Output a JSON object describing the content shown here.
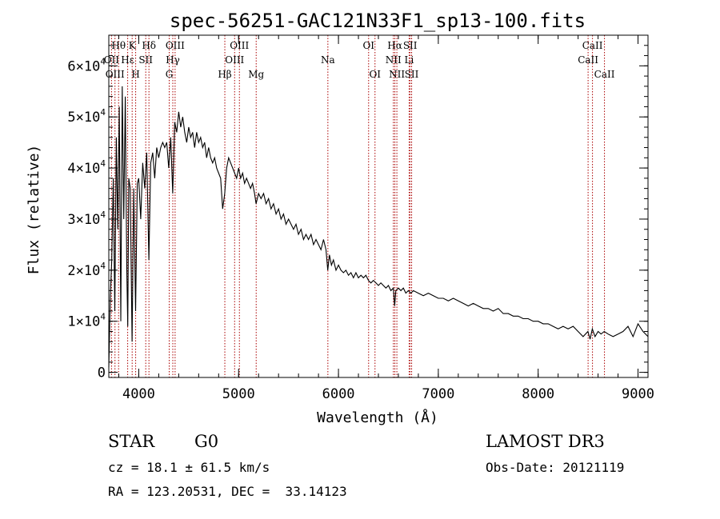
{
  "chart_data": {
    "type": "line",
    "title": "spec-56251-GAC121N33F1_sp13-100.fits",
    "xlabel": "Wavelength (Å)",
    "ylabel": "Flux (relative)",
    "xlim": [
      3700,
      9100
    ],
    "ylim": [
      -1000,
      66000
    ],
    "x_ticks": [
      4000,
      5000,
      6000,
      7000,
      8000,
      9000
    ],
    "x_tick_labels": [
      "4000",
      "5000",
      "6000",
      "7000",
      "8000",
      "9000"
    ],
    "y_ticks": [
      0,
      10000,
      20000,
      30000,
      40000,
      50000,
      60000
    ],
    "y_tick_labels": [
      {
        "mantissa": "0",
        "exp": ""
      },
      {
        "mantissa": "1×10",
        "exp": "4"
      },
      {
        "mantissa": "2×10",
        "exp": "4"
      },
      {
        "mantissa": "3×10",
        "exp": "4"
      },
      {
        "mantissa": "4×10",
        "exp": "4"
      },
      {
        "mantissa": "5×10",
        "exp": "4"
      },
      {
        "mantissa": "6×10",
        "exp": "4"
      }
    ],
    "grid": false,
    "line_color": "#000000",
    "marker_color": "#aa0000",
    "series": [
      {
        "x": [
          3700,
          3715,
          3730,
          3745,
          3760,
          3775,
          3790,
          3805,
          3820,
          3835,
          3850,
          3865,
          3880,
          3890,
          3900,
          3915,
          3933,
          3950,
          3968,
          3985,
          4000,
          4020,
          4040,
          4060,
          4080,
          4101,
          4120,
          4140,
          4160,
          4180,
          4200,
          4220,
          4240,
          4260,
          4280,
          4300,
          4320,
          4340,
          4360,
          4380,
          4400,
          4420,
          4440,
          4460,
          4480,
          4500,
          4520,
          4540,
          4560,
          4580,
          4600,
          4620,
          4640,
          4660,
          4680,
          4700,
          4720,
          4740,
          4760,
          4780,
          4800,
          4820,
          4840,
          4861,
          4880,
          4900,
          4920,
          4940,
          4960,
          4980,
          5000,
          5020,
          5040,
          5060,
          5080,
          5100,
          5120,
          5140,
          5160,
          5175,
          5200,
          5225,
          5250,
          5275,
          5300,
          5325,
          5350,
          5375,
          5400,
          5425,
          5450,
          5475,
          5500,
          5525,
          5550,
          5575,
          5600,
          5625,
          5650,
          5675,
          5700,
          5725,
          5750,
          5775,
          5800,
          5825,
          5850,
          5875,
          5893,
          5910,
          5930,
          5950,
          5975,
          6000,
          6025,
          6050,
          6075,
          6100,
          6125,
          6150,
          6175,
          6200,
          6225,
          6250,
          6275,
          6300,
          6325,
          6350,
          6375,
          6400,
          6425,
          6450,
          6475,
          6500,
          6525,
          6550,
          6563,
          6575,
          6600,
          6625,
          6650,
          6675,
          6700,
          6725,
          6750,
          6800,
          6850,
          6900,
          6950,
          7000,
          7050,
          7100,
          7150,
          7200,
          7250,
          7300,
          7350,
          7400,
          7450,
          7500,
          7550,
          7600,
          7650,
          7700,
          7750,
          7800,
          7850,
          7900,
          7950,
          8000,
          8050,
          8100,
          8150,
          8200,
          8250,
          8300,
          8350,
          8400,
          8450,
          8498,
          8520,
          8542,
          8570,
          8600,
          8630,
          8662,
          8700,
          8750,
          8800,
          8850,
          8900,
          8950,
          9000,
          9050,
          9100
        ],
        "y": [
          1000,
          15000,
          22000,
          38000,
          12000,
          46000,
          28000,
          52000,
          10000,
          56000,
          30000,
          54000,
          20000,
          9000,
          38000,
          36000,
          6000,
          36000,
          12000,
          37000,
          38000,
          30000,
          41000,
          36000,
          43000,
          22000,
          41000,
          43000,
          38000,
          44000,
          42000,
          44000,
          45000,
          44000,
          45000,
          40000,
          46000,
          35000,
          49000,
          47000,
          51000,
          48000,
          50000,
          47000,
          45000,
          48000,
          46000,
          47000,
          44000,
          47000,
          45000,
          46000,
          44000,
          45000,
          42000,
          44000,
          42000,
          41000,
          42000,
          40000,
          39000,
          38000,
          32000,
          35000,
          40000,
          42000,
          41000,
          40000,
          39000,
          38000,
          40000,
          38000,
          39000,
          37000,
          38000,
          37000,
          36000,
          37000,
          35000,
          33000,
          35000,
          34000,
          35000,
          33000,
          34000,
          32000,
          33000,
          31000,
          32000,
          30000,
          31000,
          29000,
          30000,
          29000,
          28000,
          29000,
          27000,
          28000,
          26000,
          27000,
          26000,
          27000,
          25000,
          26000,
          25000,
          24000,
          26000,
          24000,
          20000,
          23000,
          21000,
          22000,
          20000,
          21000,
          20000,
          19500,
          20000,
          19000,
          19500,
          18500,
          19500,
          18500,
          19000,
          18500,
          19000,
          18000,
          17500,
          18000,
          17500,
          17000,
          17500,
          17000,
          16500,
          17000,
          16000,
          16500,
          13000,
          16000,
          16500,
          16000,
          16500,
          15500,
          16000,
          15500,
          16000,
          15500,
          15000,
          15500,
          15000,
          14500,
          14500,
          14000,
          14500,
          14000,
          13500,
          13000,
          13500,
          13000,
          12500,
          12500,
          12000,
          12500,
          11500,
          11500,
          11000,
          11000,
          10500,
          10500,
          10000,
          10000,
          9500,
          9500,
          9000,
          8500,
          9000,
          8500,
          9000,
          8000,
          7000,
          8000,
          6500,
          8500,
          7000,
          8000,
          7500,
          8000,
          7500,
          7000,
          7500,
          8000,
          9000,
          7000,
          9500,
          8000,
          7000
        ]
      }
    ],
    "spectral_lines": [
      {
        "label": "Hθ",
        "x": 3798,
        "row": 0
      },
      {
        "label": "OII",
        "x": 3727,
        "row": 1
      },
      {
        "label": "OIII",
        "x": 3762,
        "row": 2
      },
      {
        "label": "K",
        "x": 3934,
        "row": 0
      },
      {
        "label": "Hε",
        "x": 3889,
        "row": 1
      },
      {
        "label": "H",
        "x": 3969,
        "row": 2
      },
      {
        "label": "Hδ",
        "x": 4102,
        "row": 0
      },
      {
        "label": "SII",
        "x": 4070,
        "row": 1
      },
      {
        "label": "OIII",
        "x": 4364,
        "row": 0
      },
      {
        "label": "Hγ",
        "x": 4341,
        "row": 1
      },
      {
        "label": "G",
        "x": 4305,
        "row": 2
      },
      {
        "label": "Hβ",
        "x": 4862,
        "row": 2
      },
      {
        "label": "OIII",
        "x": 5008,
        "row": 0
      },
      {
        "label": "OIII",
        "x": 4960,
        "row": 1
      },
      {
        "label": "Mg",
        "x": 5176,
        "row": 2
      },
      {
        "label": "Na",
        "x": 5894,
        "row": 1
      },
      {
        "label": "OI",
        "x": 6302,
        "row": 0
      },
      {
        "label": "OI",
        "x": 6366,
        "row": 2
      },
      {
        "label": "Hα",
        "x": 6565,
        "row": 0
      },
      {
        "label": "NII",
        "x": 6550,
        "row": 1
      },
      {
        "label": "NII",
        "x": 6585,
        "row": 2
      },
      {
        "label": "SII",
        "x": 6718,
        "row": 0
      },
      {
        "label": "Li",
        "x": 6708,
        "row": 1
      },
      {
        "label": "SII",
        "x": 6733,
        "row": 2
      },
      {
        "label": "CaII",
        "x": 8544,
        "row": 0
      },
      {
        "label": "CaII",
        "x": 8500,
        "row": 1
      },
      {
        "label": "CaII",
        "x": 8664,
        "row": 2
      }
    ]
  },
  "info": {
    "class": "STAR",
    "subclass": "G0",
    "survey": "LAMOST DR3",
    "cz": "cz = 18.1 ± 61.5 km/s",
    "obs_date": "Obs-Date: 20121119",
    "coords": "RA = 123.20531, DEC =  33.14123"
  }
}
